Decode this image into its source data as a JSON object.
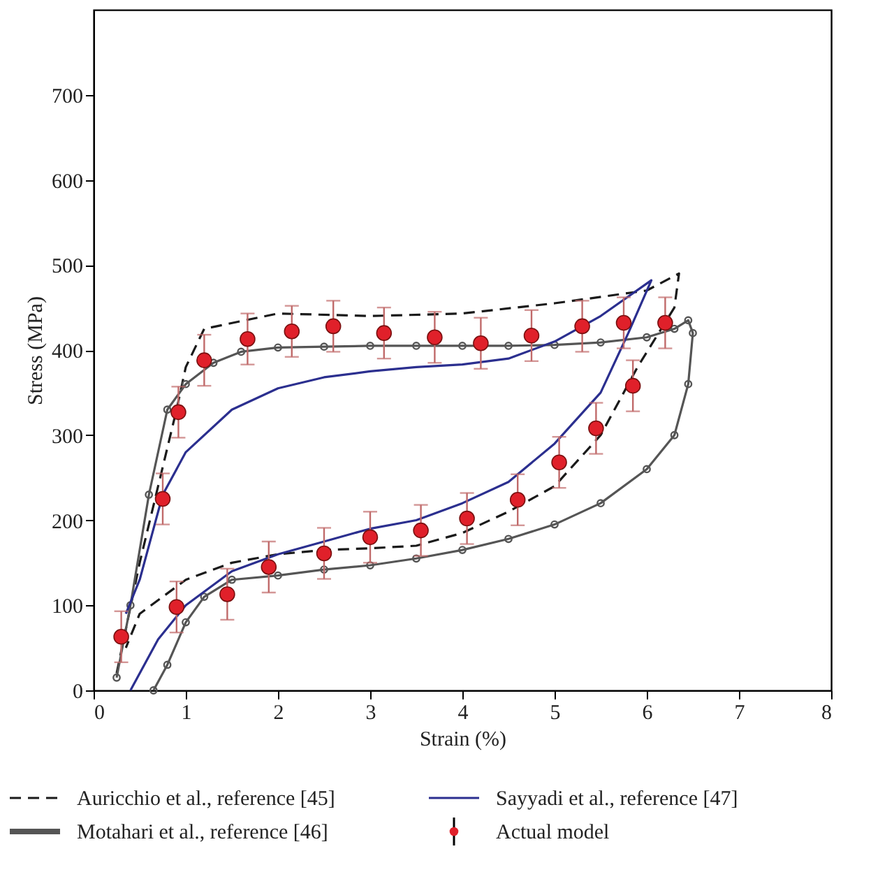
{
  "chart_data": {
    "type": "line",
    "xlabel": "Strain (%)",
    "ylabel": "Stress (MPa)",
    "xlim": [
      0,
      8
    ],
    "ylim": [
      0,
      800
    ],
    "xticks": [
      0,
      1,
      2,
      3,
      4,
      5,
      6,
      7,
      8
    ],
    "yticks": [
      0,
      100,
      200,
      300,
      400,
      500,
      600,
      700
    ],
    "legend": "bottom",
    "series": [
      {
        "name": "Auricchio et al., reference [45]",
        "color": "#1a1a1a",
        "line_style": "dashed",
        "marker": "none",
        "x": [
          0.25,
          0.5,
          0.9,
          1.0,
          1.2,
          2,
          3,
          4,
          5,
          6,
          6.35,
          6.3,
          5.9,
          5.5,
          5,
          4.5,
          4,
          3.5,
          3,
          2.5,
          2,
          1.5,
          1.0,
          0.5,
          0.35
        ],
        "values": [
          20,
          150,
          330,
          380,
          425,
          443,
          440,
          443,
          455,
          470,
          490,
          450,
          380,
          300,
          240,
          210,
          185,
          170,
          167,
          165,
          160,
          150,
          130,
          90,
          50
        ]
      },
      {
        "name": "Motahari et al., reference [46]",
        "color": "#555555",
        "line_style": "solid",
        "marker": "circle",
        "x": [
          0.25,
          0.4,
          0.6,
          0.8,
          1.0,
          1.3,
          1.6,
          2,
          2.5,
          3,
          3.5,
          4,
          4.5,
          5,
          5.5,
          6,
          6.3,
          6.45,
          6.5,
          6.45,
          6.3,
          6.0,
          5.5,
          5.0,
          4.5,
          4.0,
          3.5,
          3,
          2.5,
          2,
          1.5,
          1.2,
          1.0,
          0.8,
          0.65
        ],
        "values": [
          15,
          100,
          230,
          330,
          360,
          385,
          398,
          403,
          404,
          405,
          405,
          405,
          405,
          406,
          409,
          415,
          425,
          435,
          420,
          360,
          300,
          260,
          220,
          195,
          178,
          165,
          155,
          147,
          142,
          135,
          130,
          110,
          80,
          30,
          0
        ]
      },
      {
        "name": "Sayyadi et al., reference [47]",
        "color": "#2b2f8f",
        "line_style": "solid",
        "marker": "none",
        "x": [
          0.35,
          0.5,
          0.75,
          1,
          1.5,
          2,
          2.5,
          3,
          3.5,
          4,
          4.5,
          5,
          5.5,
          6.05,
          5.8,
          5.5,
          5.0,
          4.5,
          4,
          3.5,
          3,
          2.5,
          2,
          1.5,
          1.0,
          0.7,
          0.4
        ],
        "values": [
          90,
          130,
          230,
          280,
          330,
          355,
          368,
          375,
          380,
          383,
          390,
          410,
          440,
          482,
          420,
          350,
          290,
          245,
          220,
          200,
          190,
          175,
          160,
          140,
          100,
          60,
          0
        ]
      },
      {
        "name": "Actual model",
        "type": "scatter",
        "color": "#e0202a",
        "marker": "circle",
        "x": [
          0.3,
          0.75,
          0.92,
          1.2,
          1.67,
          2.15,
          2.6,
          3.15,
          3.7,
          4.2,
          4.75,
          5.3,
          5.75,
          6.2,
          5.85,
          5.45,
          5.05,
          4.6,
          4.05,
          3.55,
          3.0,
          2.5,
          1.9,
          1.45,
          0.9
        ],
        "values": [
          63,
          225,
          327,
          388,
          413,
          422,
          428,
          420,
          415,
          408,
          417,
          428,
          432,
          432,
          358,
          308,
          268,
          224,
          202,
          188,
          180,
          161,
          145,
          113,
          98
        ],
        "errors": [
          30,
          30,
          30,
          30,
          30,
          30,
          30,
          30,
          30,
          30,
          30,
          30,
          30,
          30,
          30,
          30,
          30,
          30,
          30,
          30,
          30,
          30,
          30,
          30,
          30
        ]
      }
    ]
  }
}
